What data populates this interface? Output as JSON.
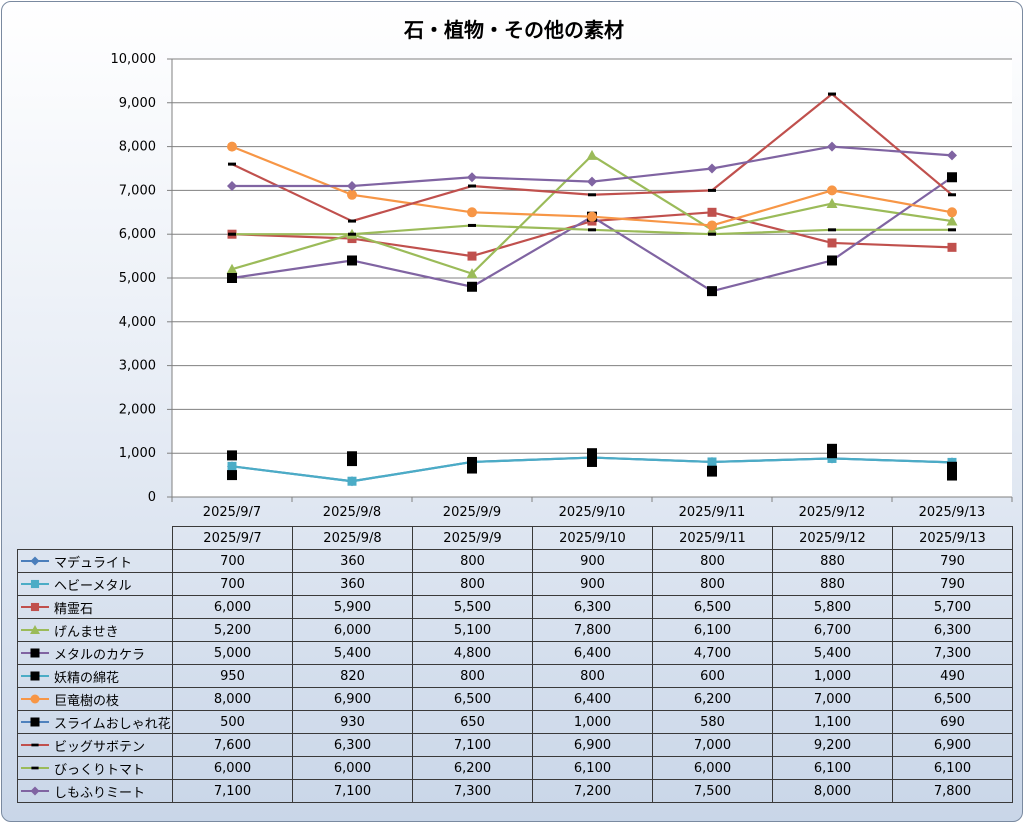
{
  "chart_data": {
    "type": "line",
    "title": "石・植物・その他の素材",
    "categories": [
      "2025/9/7",
      "2025/9/8",
      "2025/9/9",
      "2025/9/10",
      "2025/9/11",
      "2025/9/12",
      "2025/9/13"
    ],
    "ylim": [
      0,
      10000
    ],
    "yticks": [
      "0",
      "1,000",
      "2,000",
      "3,000",
      "4,000",
      "5,000",
      "6,000",
      "7,000",
      "8,000",
      "9,000",
      "10,000"
    ],
    "ytick_values": [
      0,
      1000,
      2000,
      3000,
      4000,
      5000,
      6000,
      7000,
      8000,
      9000,
      10000
    ],
    "grid": true,
    "legend_placement": "data table below chart",
    "series": [
      {
        "name": "マデュライト",
        "values": [
          700,
          360,
          800,
          900,
          800,
          880,
          790
        ],
        "labels": [
          "700",
          "360",
          "800",
          "900",
          "800",
          "880",
          "790"
        ],
        "color": "#4a7ebb",
        "marker": "diamond",
        "line": true
      },
      {
        "name": "ヘビーメタル",
        "values": [
          700,
          360,
          800,
          900,
          800,
          880,
          790
        ],
        "labels": [
          "700",
          "360",
          "800",
          "900",
          "800",
          "880",
          "790"
        ],
        "color": "#4bacc6",
        "marker": "square",
        "line": true
      },
      {
        "name": "精霊石",
        "values": [
          6000,
          5900,
          5500,
          6300,
          6500,
          5800,
          5700
        ],
        "labels": [
          "6,000",
          "5,900",
          "5,500",
          "6,300",
          "6,500",
          "5,800",
          "5,700"
        ],
        "color": "#c0504d",
        "marker": "square",
        "line": true
      },
      {
        "name": "げんませき",
        "values": [
          5200,
          6000,
          5100,
          7800,
          6100,
          6700,
          6300
        ],
        "labels": [
          "5,200",
          "6,000",
          "5,100",
          "7,800",
          "6,100",
          "6,700",
          "6,300"
        ],
        "color": "#9bbb59",
        "marker": "triangle",
        "line": true
      },
      {
        "name": "メタルのカケラ",
        "values": [
          5000,
          5400,
          4800,
          6400,
          4700,
          5400,
          7300
        ],
        "labels": [
          "5,000",
          "5,400",
          "4,800",
          "6,400",
          "4,700",
          "5,400",
          "7,300"
        ],
        "color": "#8064a2",
        "marker": "bigsquare",
        "marker_color": "#000000",
        "line": true
      },
      {
        "name": "妖精の綿花",
        "values": [
          950,
          820,
          800,
          800,
          600,
          1000,
          490
        ],
        "labels": [
          "950",
          "820",
          "800",
          "800",
          "600",
          "1,000",
          "490"
        ],
        "color": "#4bacc6",
        "marker": "bigsquare",
        "marker_color": "#000000",
        "line": false
      },
      {
        "name": "巨竜樹の枝",
        "values": [
          8000,
          6900,
          6500,
          6400,
          6200,
          7000,
          6500
        ],
        "labels": [
          "8,000",
          "6,900",
          "6,500",
          "6,400",
          "6,200",
          "7,000",
          "6,500"
        ],
        "color": "#f79646",
        "marker": "circle",
        "line": true
      },
      {
        "name": "スライムおしゃれ花",
        "values": [
          500,
          930,
          650,
          1000,
          580,
          1100,
          690
        ],
        "labels": [
          "500",
          "930",
          "650",
          "1,000",
          "580",
          "1,100",
          "690"
        ],
        "color": "#4f81bd",
        "marker": "bigsquare",
        "marker_color": "#000000",
        "line": false
      },
      {
        "name": "ビッグサボテン",
        "values": [
          7600,
          6300,
          7100,
          6900,
          7000,
          9200,
          6900
        ],
        "labels": [
          "7,600",
          "6,300",
          "7,100",
          "6,900",
          "7,000",
          "9,200",
          "6,900"
        ],
        "color": "#c0504d",
        "marker": "dash",
        "marker_color": "#000000",
        "line": true
      },
      {
        "name": "びっくりトマト",
        "values": [
          6000,
          6000,
          6200,
          6100,
          6000,
          6100,
          6100
        ],
        "labels": [
          "6,000",
          "6,000",
          "6,200",
          "6,100",
          "6,000",
          "6,100",
          "6,100"
        ],
        "color": "#9bbb59",
        "marker": "dash",
        "marker_color": "#000000",
        "line": true
      },
      {
        "name": "しもふりミート",
        "values": [
          7100,
          7100,
          7300,
          7200,
          7500,
          8000,
          7800
        ],
        "labels": [
          "7,100",
          "7,100",
          "7,300",
          "7,200",
          "7,500",
          "8,000",
          "7,800"
        ],
        "color": "#8064a2",
        "marker": "diamond",
        "line": true
      }
    ]
  }
}
